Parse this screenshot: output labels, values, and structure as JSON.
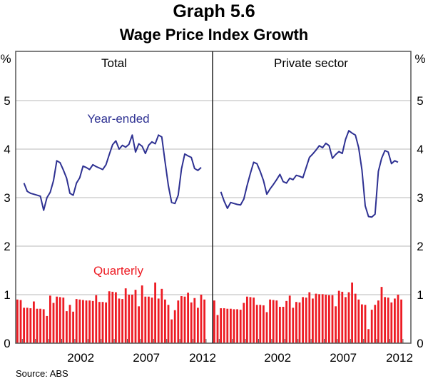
{
  "title": "Graph 5.6",
  "subtitle": "Wage Price Index Growth",
  "source": "Source: ABS",
  "unit_left": "%",
  "unit_right": "%",
  "colors": {
    "line": "#2e3192",
    "bar": "#ed1c24",
    "grid": "#c8c8c8",
    "frame": "#555555"
  },
  "chart_data": {
    "type": "bar+line",
    "ylim": [
      0,
      5.9
    ],
    "yticks": [
      "0",
      "1",
      "2",
      "3",
      "4",
      "5"
    ],
    "xticks": [
      "2002",
      "2007",
      "2012"
    ],
    "grid": true,
    "series_labels": {
      "line": "Year-ended",
      "bar": "Quarterly"
    },
    "start_quarter": "1997-Q3",
    "panels": [
      {
        "name": "Total",
        "quarterly": [
          0.9,
          0.89,
          0.73,
          0.73,
          0.72,
          0.86,
          0.71,
          0.71,
          0.7,
          0.56,
          0.98,
          0.83,
          0.96,
          0.95,
          0.94,
          0.66,
          0.79,
          0.65,
          0.91,
          0.9,
          0.89,
          0.88,
          0.88,
          0.87,
          0.99,
          0.85,
          0.85,
          0.84,
          1.07,
          1.06,
          1.05,
          0.92,
          0.91,
          1.13,
          1.0,
          1.0,
          1.1,
          0.76,
          1.19,
          0.96,
          0.96,
          0.94,
          1.25,
          0.92,
          1.12,
          0.9,
          0.79,
          0.49,
          0.68,
          0.88,
          0.97,
          0.96,
          1.04,
          0.84,
          0.93,
          0.73,
          1.0,
          0.9
        ],
        "year_ended_offset": 2,
        "year_ended": [
          3.3,
          3.13,
          3.09,
          3.07,
          3.05,
          3.03,
          2.74,
          3.0,
          3.11,
          3.35,
          3.76,
          3.72,
          3.57,
          3.4,
          3.09,
          3.05,
          3.3,
          3.41,
          3.65,
          3.62,
          3.58,
          3.68,
          3.64,
          3.61,
          3.58,
          3.68,
          3.89,
          4.09,
          4.17,
          4.0,
          4.08,
          4.04,
          4.1,
          4.29,
          3.94,
          4.11,
          4.06,
          3.91,
          4.08,
          4.15,
          4.11,
          4.29,
          4.25,
          3.74,
          3.25,
          2.9,
          2.88,
          3.05,
          3.59,
          3.9,
          3.86,
          3.83,
          3.6,
          3.56,
          3.62
        ]
      },
      {
        "name": "Private sector",
        "quarterly": [
          0.88,
          0.58,
          0.72,
          0.72,
          0.71,
          0.71,
          0.7,
          0.7,
          0.69,
          0.83,
          0.96,
          0.95,
          0.94,
          0.79,
          0.79,
          0.78,
          0.64,
          0.9,
          0.89,
          0.88,
          0.75,
          0.75,
          0.87,
          0.98,
          0.73,
          0.85,
          0.84,
          0.95,
          0.94,
          1.05,
          0.92,
          1.02,
          1.01,
          1.01,
          1.0,
          0.99,
          0.99,
          0.76,
          1.08,
          1.06,
          0.95,
          1.05,
          1.25,
          1.02,
          0.9,
          0.8,
          0.79,
          0.29,
          0.69,
          0.79,
          0.88,
          1.16,
          0.95,
          0.94,
          0.84,
          0.92,
          1.0,
          0.9
        ],
        "year_ended_offset": 2,
        "year_ended": [
          3.12,
          2.93,
          2.78,
          2.9,
          2.88,
          2.86,
          2.85,
          2.97,
          3.25,
          3.5,
          3.73,
          3.7,
          3.54,
          3.35,
          3.07,
          3.18,
          3.27,
          3.37,
          3.48,
          3.33,
          3.3,
          3.4,
          3.37,
          3.46,
          3.44,
          3.41,
          3.62,
          3.83,
          3.9,
          3.98,
          4.07,
          4.03,
          4.12,
          4.07,
          3.81,
          3.89,
          3.95,
          3.91,
          4.2,
          4.38,
          4.33,
          4.29,
          4.03,
          3.57,
          2.83,
          2.61,
          2.6,
          2.66,
          3.54,
          3.81,
          3.97,
          3.94,
          3.7,
          3.76,
          3.73
        ]
      }
    ]
  }
}
